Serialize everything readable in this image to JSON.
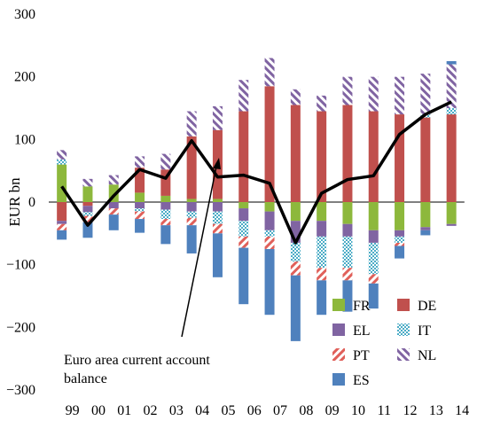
{
  "chart_data": {
    "type": "bar",
    "stacked": true,
    "ylabel": "EUR bn",
    "ylim": [
      -300,
      300
    ],
    "yticks": [
      -300,
      -200,
      -100,
      0,
      100,
      200,
      300
    ],
    "categories": [
      "99",
      "00",
      "01",
      "02",
      "03",
      "04",
      "05",
      "06",
      "07",
      "08",
      "09",
      "10",
      "11",
      "12",
      "13",
      "14"
    ],
    "series": [
      {
        "name": "FR",
        "key": "FR",
        "color": "#8db83c",
        "pattern": "solid",
        "values": [
          60,
          25,
          28,
          15,
          10,
          5,
          5,
          -10,
          -15,
          -30,
          -30,
          -35,
          -45,
          -45,
          -40,
          -35
        ]
      },
      {
        "name": "DE",
        "key": "DE",
        "color": "#c0504d",
        "pattern": "solid",
        "values": [
          -30,
          -6,
          0,
          40,
          42,
          100,
          110,
          145,
          185,
          155,
          145,
          155,
          145,
          140,
          135,
          140
        ]
      },
      {
        "name": "EL",
        "key": "EL",
        "color": "#8064a2",
        "pattern": "solid",
        "values": [
          -5,
          -10,
          -10,
          -10,
          -12,
          -15,
          -15,
          -20,
          -30,
          -35,
          -25,
          -20,
          -20,
          -10,
          -5,
          -3
        ]
      },
      {
        "name": "IT",
        "key": "IT",
        "color": "#4bacc6",
        "pattern": "dots",
        "values": [
          8,
          -6,
          0,
          -5,
          -15,
          -10,
          -20,
          -25,
          -10,
          -30,
          -50,
          -50,
          -50,
          -10,
          5,
          10
        ]
      },
      {
        "name": "PT",
        "key": "PT",
        "color": "#e0605a",
        "pattern": "hatch",
        "values": [
          -10,
          -10,
          -10,
          -12,
          -10,
          -12,
          -15,
          -18,
          -20,
          -22,
          -20,
          -20,
          -15,
          -5,
          0,
          0
        ]
      },
      {
        "name": "NL",
        "key": "NL",
        "color": "#8064a2",
        "pattern": "hatch",
        "values": [
          15,
          12,
          15,
          18,
          25,
          40,
          38,
          50,
          45,
          25,
          25,
          45,
          55,
          60,
          65,
          70
        ]
      },
      {
        "name": "ES",
        "key": "ES",
        "color": "#4f81bd",
        "pattern": "solid",
        "values": [
          -15,
          -25,
          -25,
          -22,
          -30,
          -45,
          -70,
          -90,
          -105,
          -105,
          -55,
          -50,
          -40,
          -20,
          -8,
          5
        ]
      }
    ],
    "line": {
      "name": "Euro area current account balance",
      "values": [
        25,
        -37,
        10,
        52,
        38,
        98,
        40,
        43,
        30,
        -65,
        14,
        36,
        42,
        108,
        140,
        160
      ]
    },
    "annotation": "Euro area current account balance",
    "legend": {
      "position": "bottom-right",
      "order": [
        "FR",
        "DE",
        "EL",
        "IT",
        "PT",
        "NL",
        "ES"
      ]
    }
  }
}
